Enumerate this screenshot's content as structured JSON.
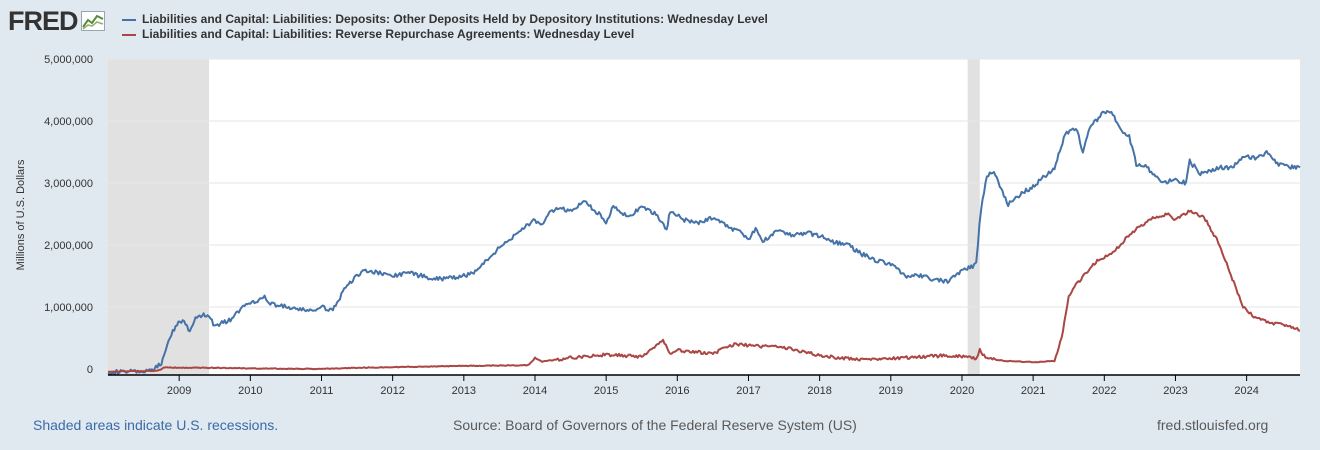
{
  "logo": {
    "text": "FRED"
  },
  "legend": [
    {
      "label": "Liabilities and Capital: Liabilities: Deposits: Other Deposits Held by Depository Institutions: Wednesday Level",
      "color": "#4572a7"
    },
    {
      "label": "Liabilities and Capital: Liabilities: Reverse Repurchase Agreements: Wednesday Level",
      "color": "#aa4643"
    }
  ],
  "footer": {
    "recession_note": "Shaded areas indicate U.S. recessions.",
    "source": "Source: Board of Governors of the Federal Reserve System (US)",
    "site": "fred.stlouisfed.org"
  },
  "chart_data": {
    "type": "line",
    "ylabel": "Millions of U.S. Dollars",
    "ylim": [
      0,
      5000000
    ],
    "xlim": [
      2008.0,
      2024.75
    ],
    "y_ticks": [
      {
        "value": 0,
        "label": "0"
      },
      {
        "value": 1000000,
        "label": "1,000,000"
      },
      {
        "value": 2000000,
        "label": "2,000,000"
      },
      {
        "value": 3000000,
        "label": "3,000,000"
      },
      {
        "value": 4000000,
        "label": "4,000,000"
      },
      {
        "value": 5000000,
        "label": "5,000,000"
      }
    ],
    "x_ticks": [
      "2009",
      "2010",
      "2011",
      "2012",
      "2013",
      "2014",
      "2015",
      "2016",
      "2017",
      "2018",
      "2019",
      "2020",
      "2021",
      "2022",
      "2023",
      "2024"
    ],
    "recessions": [
      [
        2008.0,
        2009.42
      ],
      [
        2020.08,
        2020.25
      ]
    ],
    "grid": true,
    "series": [
      {
        "name": "Liabilities and Capital: Liabilities: Deposits: Other Deposits Held by Depository Institutions: Wednesday Level",
        "color": "#4572a7",
        "points": [
          [
            2008.0,
            -50000
          ],
          [
            2008.6,
            -40000
          ],
          [
            2008.75,
            100000
          ],
          [
            2008.85,
            450000
          ],
          [
            2008.95,
            700000
          ],
          [
            2009.05,
            790000
          ],
          [
            2009.15,
            600000
          ],
          [
            2009.25,
            850000
          ],
          [
            2009.4,
            880000
          ],
          [
            2009.5,
            700000
          ],
          [
            2009.7,
            780000
          ],
          [
            2009.9,
            1000000
          ],
          [
            2010.1,
            1100000
          ],
          [
            2010.2,
            1150000
          ],
          [
            2010.3,
            1050000
          ],
          [
            2010.5,
            1000000
          ],
          [
            2010.7,
            950000
          ],
          [
            2010.9,
            950000
          ],
          [
            2011.0,
            1000000
          ],
          [
            2011.1,
            950000
          ],
          [
            2011.2,
            1000000
          ],
          [
            2011.3,
            1250000
          ],
          [
            2011.4,
            1400000
          ],
          [
            2011.6,
            1600000
          ],
          [
            2011.8,
            1550000
          ],
          [
            2012.0,
            1500000
          ],
          [
            2012.2,
            1550000
          ],
          [
            2012.5,
            1480000
          ],
          [
            2012.7,
            1450000
          ],
          [
            2012.9,
            1480000
          ],
          [
            2013.0,
            1500000
          ],
          [
            2013.2,
            1600000
          ],
          [
            2013.4,
            1850000
          ],
          [
            2013.6,
            2050000
          ],
          [
            2013.8,
            2250000
          ],
          [
            2014.0,
            2400000
          ],
          [
            2014.1,
            2300000
          ],
          [
            2014.2,
            2500000
          ],
          [
            2014.3,
            2600000
          ],
          [
            2014.5,
            2550000
          ],
          [
            2014.7,
            2700000
          ],
          [
            2014.9,
            2500000
          ],
          [
            2015.0,
            2350000
          ],
          [
            2015.1,
            2650000
          ],
          [
            2015.3,
            2450000
          ],
          [
            2015.5,
            2600000
          ],
          [
            2015.7,
            2500000
          ],
          [
            2015.85,
            2250000
          ],
          [
            2015.9,
            2550000
          ],
          [
            2016.1,
            2400000
          ],
          [
            2016.3,
            2350000
          ],
          [
            2016.5,
            2450000
          ],
          [
            2016.7,
            2300000
          ],
          [
            2016.9,
            2200000
          ],
          [
            2017.0,
            2100000
          ],
          [
            2017.1,
            2250000
          ],
          [
            2017.2,
            2050000
          ],
          [
            2017.4,
            2250000
          ],
          [
            2017.6,
            2150000
          ],
          [
            2017.8,
            2200000
          ],
          [
            2018.0,
            2150000
          ],
          [
            2018.2,
            2050000
          ],
          [
            2018.4,
            2000000
          ],
          [
            2018.6,
            1850000
          ],
          [
            2018.8,
            1750000
          ],
          [
            2019.0,
            1700000
          ],
          [
            2019.2,
            1500000
          ],
          [
            2019.4,
            1500000
          ],
          [
            2019.6,
            1450000
          ],
          [
            2019.8,
            1400000
          ],
          [
            2019.9,
            1500000
          ],
          [
            2020.0,
            1600000
          ],
          [
            2020.15,
            1650000
          ],
          [
            2020.2,
            1750000
          ],
          [
            2020.27,
            2600000
          ],
          [
            2020.35,
            3100000
          ],
          [
            2020.45,
            3200000
          ],
          [
            2020.55,
            2900000
          ],
          [
            2020.65,
            2650000
          ],
          [
            2020.8,
            2800000
          ],
          [
            2021.0,
            2950000
          ],
          [
            2021.1,
            3050000
          ],
          [
            2021.3,
            3250000
          ],
          [
            2021.45,
            3800000
          ],
          [
            2021.6,
            3900000
          ],
          [
            2021.7,
            3500000
          ],
          [
            2021.8,
            3900000
          ],
          [
            2022.0,
            4150000
          ],
          [
            2022.1,
            4150000
          ],
          [
            2022.2,
            3900000
          ],
          [
            2022.35,
            3750000
          ],
          [
            2022.45,
            3300000
          ],
          [
            2022.6,
            3250000
          ],
          [
            2022.8,
            3000000
          ],
          [
            2023.0,
            3050000
          ],
          [
            2023.15,
            3000000
          ],
          [
            2023.2,
            3350000
          ],
          [
            2023.35,
            3150000
          ],
          [
            2023.6,
            3250000
          ],
          [
            2023.8,
            3250000
          ],
          [
            2024.0,
            3450000
          ],
          [
            2024.1,
            3400000
          ],
          [
            2024.3,
            3500000
          ],
          [
            2024.45,
            3300000
          ],
          [
            2024.6,
            3250000
          ],
          [
            2024.75,
            3250000
          ]
        ]
      },
      {
        "name": "Liabilities and Capital: Liabilities: Reverse Repurchase Agreements: Wednesday Level",
        "color": "#aa4643",
        "points": [
          [
            2008.0,
            -40000
          ],
          [
            2008.7,
            -30000
          ],
          [
            2008.8,
            30000
          ],
          [
            2009.0,
            20000
          ],
          [
            2009.5,
            20000
          ],
          [
            2010.0,
            10000
          ],
          [
            2011.0,
            0
          ],
          [
            2011.5,
            20000
          ],
          [
            2012.0,
            30000
          ],
          [
            2013.0,
            50000
          ],
          [
            2013.9,
            60000
          ],
          [
            2014.0,
            170000
          ],
          [
            2014.1,
            120000
          ],
          [
            2014.5,
            180000
          ],
          [
            2015.0,
            230000
          ],
          [
            2015.5,
            200000
          ],
          [
            2015.8,
            450000
          ],
          [
            2015.9,
            250000
          ],
          [
            2016.0,
            300000
          ],
          [
            2016.5,
            250000
          ],
          [
            2016.8,
            400000
          ],
          [
            2017.0,
            380000
          ],
          [
            2017.5,
            350000
          ],
          [
            2018.0,
            220000
          ],
          [
            2018.5,
            150000
          ],
          [
            2019.0,
            170000
          ],
          [
            2019.5,
            200000
          ],
          [
            2019.8,
            220000
          ],
          [
            2020.0,
            200000
          ],
          [
            2020.2,
            170000
          ],
          [
            2020.25,
            300000
          ],
          [
            2020.35,
            170000
          ],
          [
            2020.6,
            130000
          ],
          [
            2021.0,
            110000
          ],
          [
            2021.3,
            130000
          ],
          [
            2021.4,
            500000
          ],
          [
            2021.5,
            1150000
          ],
          [
            2021.6,
            1350000
          ],
          [
            2021.75,
            1550000
          ],
          [
            2021.9,
            1750000
          ],
          [
            2022.1,
            1850000
          ],
          [
            2022.3,
            2100000
          ],
          [
            2022.5,
            2300000
          ],
          [
            2022.7,
            2450000
          ],
          [
            2022.9,
            2500000
          ],
          [
            2023.0,
            2400000
          ],
          [
            2023.2,
            2550000
          ],
          [
            2023.4,
            2450000
          ],
          [
            2023.6,
            2050000
          ],
          [
            2023.8,
            1450000
          ],
          [
            2023.95,
            1000000
          ],
          [
            2024.1,
            850000
          ],
          [
            2024.3,
            750000
          ],
          [
            2024.5,
            720000
          ],
          [
            2024.65,
            680000
          ],
          [
            2024.75,
            620000
          ]
        ]
      }
    ]
  }
}
